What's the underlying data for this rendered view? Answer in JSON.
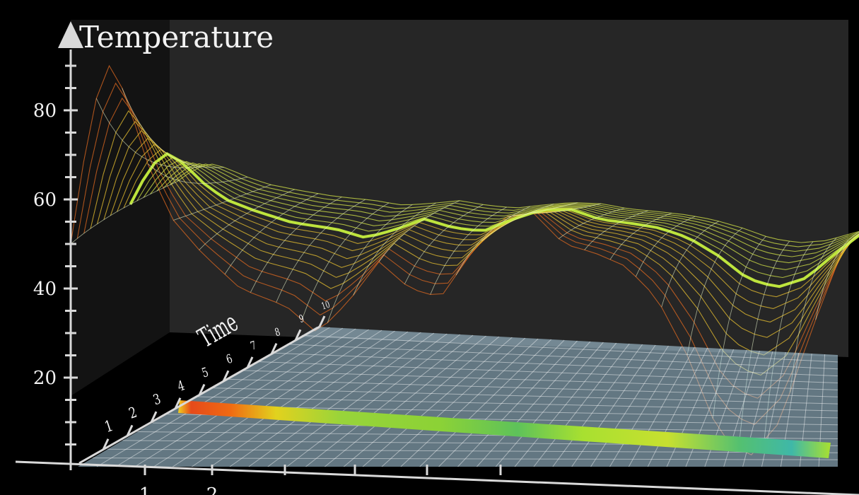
{
  "chart_data": {
    "type": "surface",
    "ylabel": "Temperature",
    "zlabel": "Time",
    "yticks": [
      "20",
      "40",
      "60",
      "80"
    ],
    "ylim": [
      0,
      90
    ],
    "time_ticks": [
      "1",
      "2",
      "3",
      "4",
      "5",
      "6",
      "7",
      "8",
      "9",
      "10"
    ],
    "time_range": [
      0,
      10
    ],
    "x_tick_labels": [
      "1",
      "2"
    ],
    "initial_temperature_curve": [
      {
        "x": 0.0,
        "y": 50
      },
      {
        "x": 0.02,
        "y": 72
      },
      {
        "x": 0.04,
        "y": 88
      },
      {
        "x": 0.05,
        "y": 90
      },
      {
        "x": 0.07,
        "y": 84
      },
      {
        "x": 0.1,
        "y": 68
      },
      {
        "x": 0.13,
        "y": 56
      },
      {
        "x": 0.17,
        "y": 48
      },
      {
        "x": 0.22,
        "y": 40
      },
      {
        "x": 0.28,
        "y": 36
      },
      {
        "x": 0.32,
        "y": 30
      },
      {
        "x": 0.36,
        "y": 37
      },
      {
        "x": 0.4,
        "y": 46
      },
      {
        "x": 0.44,
        "y": 40
      },
      {
        "x": 0.48,
        "y": 38
      },
      {
        "x": 0.52,
        "y": 48
      },
      {
        "x": 0.56,
        "y": 56
      },
      {
        "x": 0.6,
        "y": 57
      },
      {
        "x": 0.64,
        "y": 50
      },
      {
        "x": 0.68,
        "y": 48
      },
      {
        "x": 0.72,
        "y": 45
      },
      {
        "x": 0.76,
        "y": 38
      },
      {
        "x": 0.8,
        "y": 25
      },
      {
        "x": 0.84,
        "y": 8
      },
      {
        "x": 0.88,
        "y": 2
      },
      {
        "x": 0.92,
        "y": 10
      },
      {
        "x": 0.96,
        "y": 30
      },
      {
        "x": 1.0,
        "y": 48
      }
    ],
    "current_time": 10,
    "colors": {
      "hot": "#e64a1a",
      "warm": "#f0d020",
      "mid": "#a8e030",
      "cool": "#3fb8a8",
      "plane": "#b4d8ec"
    }
  }
}
